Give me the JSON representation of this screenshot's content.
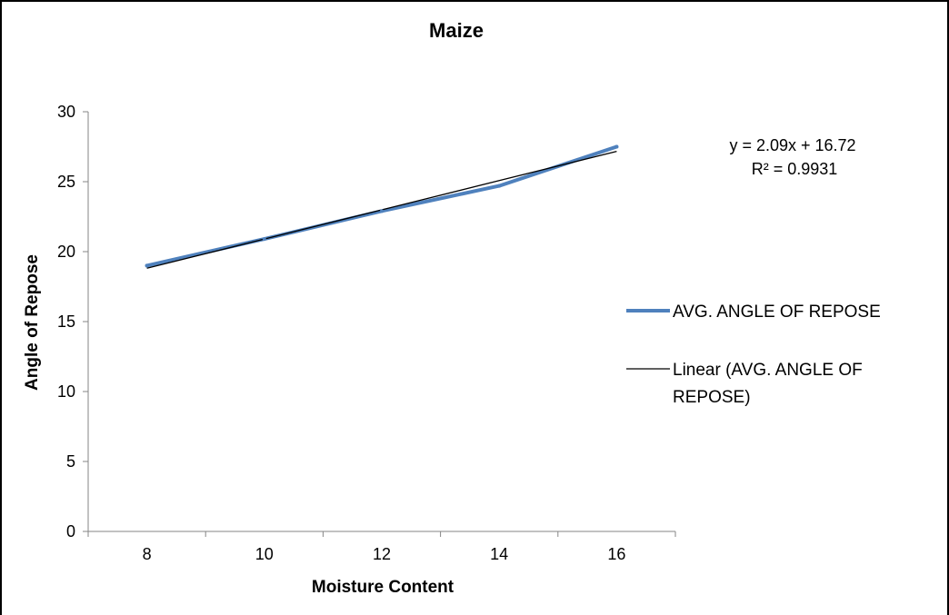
{
  "chart_data": {
    "type": "line",
    "title": "Maize",
    "xlabel": "Moisture Content",
    "ylabel": "Angle of Repose",
    "categories": [
      "8",
      "10",
      "12",
      "14",
      "16"
    ],
    "x": [
      8,
      10,
      12,
      14,
      16
    ],
    "ylim": [
      0,
      30
    ],
    "yticks": [
      "0",
      "5",
      "10",
      "15",
      "20",
      "25",
      "30"
    ],
    "grid": false,
    "legend_position": "right",
    "series": [
      {
        "name": "AVG. ANGLE OF REPOSE",
        "values": [
          19.0,
          20.9,
          22.9,
          24.7,
          27.5
        ],
        "color": "#4F81BD"
      },
      {
        "name": "Linear (AVG. ANGLE OF REPOSE)",
        "values": [
          18.81,
          20.9,
          22.99,
          25.08,
          27.17
        ],
        "color": "#000000"
      }
    ],
    "trendline": {
      "equation": "y = 2.09x + 16.72",
      "r_squared": "R² = 0.9931"
    },
    "legend_lines": [
      "AVG. ANGLE OF REPOSE",
      "Linear (AVG. ANGLE OF",
      "REPOSE)"
    ]
  }
}
